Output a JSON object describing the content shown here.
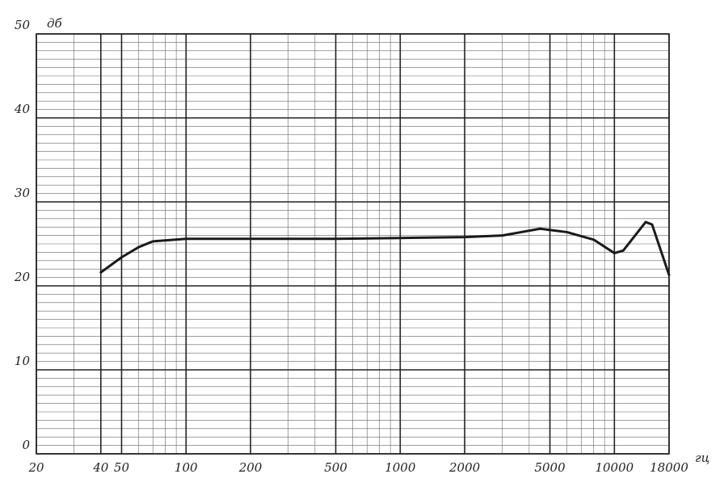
{
  "chart_data": {
    "type": "line",
    "x_label": "гц",
    "y_label": "дб",
    "x": [
      40,
      50,
      60,
      70,
      100,
      200,
      500,
      1000,
      2000,
      3000,
      4500,
      6000,
      8000,
      10000,
      11000,
      12500,
      14000,
      15000,
      18000
    ],
    "values": [
      21.6,
      23.4,
      24.6,
      25.3,
      25.6,
      25.6,
      25.6,
      25.7,
      25.8,
      26.0,
      26.8,
      26.4,
      25.5,
      23.9,
      24.2,
      26.0,
      27.6,
      27.3,
      21.3
    ],
    "color": "#1a1a1a",
    "xscale": "log",
    "xlim": [
      20,
      18000
    ],
    "ylim": [
      0,
      50
    ],
    "xticks": [
      20,
      40,
      50,
      100,
      200,
      500,
      1000,
      2000,
      5000,
      10000,
      18000
    ],
    "yticks": [
      0,
      10,
      20,
      30,
      40,
      50
    ],
    "grid": true
  }
}
